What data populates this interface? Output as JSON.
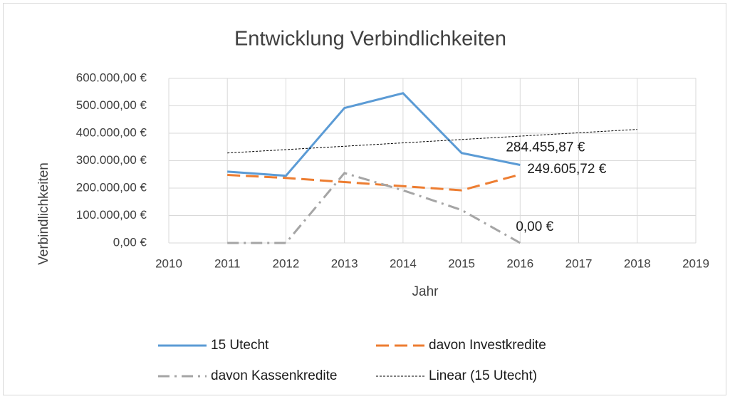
{
  "chart_data": {
    "type": "line",
    "title": "Entwicklung Verbindlichkeiten",
    "x_label": "Jahr",
    "y_label": "Verbindlichkeiten",
    "xlim": [
      2010,
      2019
    ],
    "xticks": [
      2010,
      2011,
      2012,
      2013,
      2014,
      2015,
      2016,
      2017,
      2018,
      2019
    ],
    "ylim": [
      0,
      600000
    ],
    "yticks": [
      {
        "value": 0,
        "label": "0,00 €"
      },
      {
        "value": 100000,
        "label": "100.000,00 €"
      },
      {
        "value": 200000,
        "label": "200.000,00 €"
      },
      {
        "value": 300000,
        "label": "300.000,00 €"
      },
      {
        "value": 400000,
        "label": "400.000,00 €"
      },
      {
        "value": 500000,
        "label": "500.000,00 €"
      },
      {
        "value": 600000,
        "label": "600.000,00 €"
      }
    ],
    "grid": true,
    "legend": "bottom",
    "series": [
      {
        "name": "15 Utecht",
        "color": "#5b9bd5",
        "style": "solid",
        "x": [
          2011,
          2012,
          2013,
          2014,
          2015,
          2016
        ],
        "values": [
          260000,
          245000,
          492000,
          546000,
          328000,
          284455.87
        ],
        "value_labels": [
          null,
          null,
          null,
          null,
          null,
          "284.455,87 €"
        ]
      },
      {
        "name": "davon Investkredite",
        "color": "#ed7d31",
        "style": "dashed",
        "x": [
          2011,
          2012,
          2013,
          2014,
          2015,
          2016
        ],
        "values": [
          248000,
          237000,
          222000,
          207000,
          192000,
          249605.72
        ],
        "value_labels": [
          null,
          null,
          null,
          null,
          null,
          "249.605,72 €"
        ]
      },
      {
        "name": "davon Kassenkredite",
        "color": "#a5a5a5",
        "style": "dashdot",
        "x": [
          2011,
          2012,
          2013,
          2014,
          2015,
          2016
        ],
        "values": [
          0,
          0,
          255000,
          192000,
          120000,
          0
        ],
        "value_labels": [
          null,
          null,
          null,
          null,
          null,
          "0,00 €"
        ]
      },
      {
        "name": "Linear (15 Utecht)",
        "color": "#000000",
        "style": "dotted",
        "x": [
          2011,
          2018
        ],
        "values": [
          328000,
          414000
        ]
      }
    ]
  }
}
